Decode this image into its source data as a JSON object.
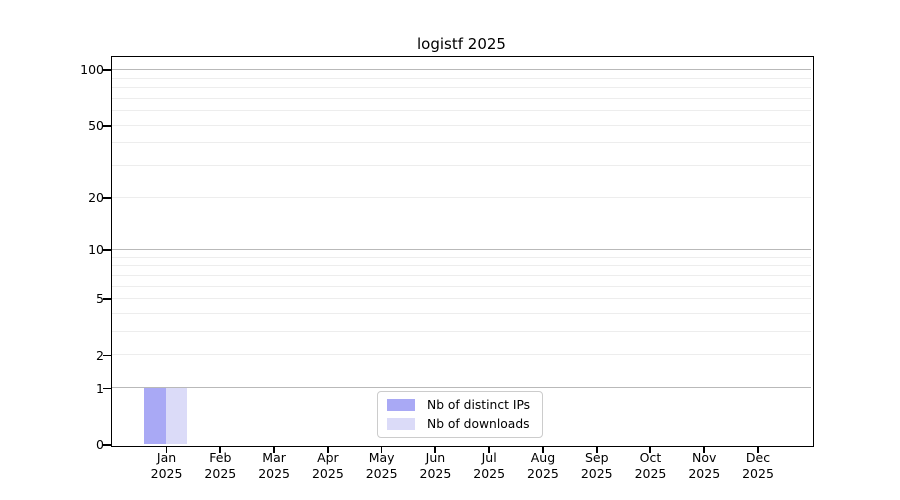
{
  "window": {
    "background": "#ffffff"
  },
  "chart_data": {
    "type": "bar",
    "title": "logistf 2025",
    "categories": [
      "Jan",
      "Feb",
      "Mar",
      "Apr",
      "May",
      "Jun",
      "Jul",
      "Aug",
      "Sep",
      "Oct",
      "Nov",
      "Dec"
    ],
    "category_year": "2025",
    "series": [
      {
        "name": "Nb of distinct IPs",
        "color": "#a9a9f5",
        "values": [
          1,
          0,
          0,
          0,
          0,
          0,
          0,
          0,
          0,
          0,
          0,
          0
        ]
      },
      {
        "name": "Nb of downloads",
        "color": "#dbdbf8",
        "values": [
          1,
          0,
          0,
          0,
          0,
          0,
          0,
          0,
          0,
          0,
          0,
          0
        ]
      }
    ],
    "y_scale": "log1p",
    "ylim": [
      0,
      117
    ],
    "y_ticks": [
      0,
      1,
      2,
      5,
      10,
      20,
      50,
      100
    ],
    "y_major_gridlines": [
      1,
      10,
      100
    ],
    "y_minor_gridlines": [
      2,
      3,
      4,
      5,
      6,
      7,
      8,
      9,
      20,
      30,
      40,
      50,
      60,
      70,
      80,
      90
    ],
    "grid": "horizontal",
    "legend_position": "lower-center-inside",
    "colors": {
      "major_grid": "#b9b9b9",
      "minor_grid": "#ededed",
      "axis": "#000000",
      "legend_border": "#cccccc"
    }
  }
}
